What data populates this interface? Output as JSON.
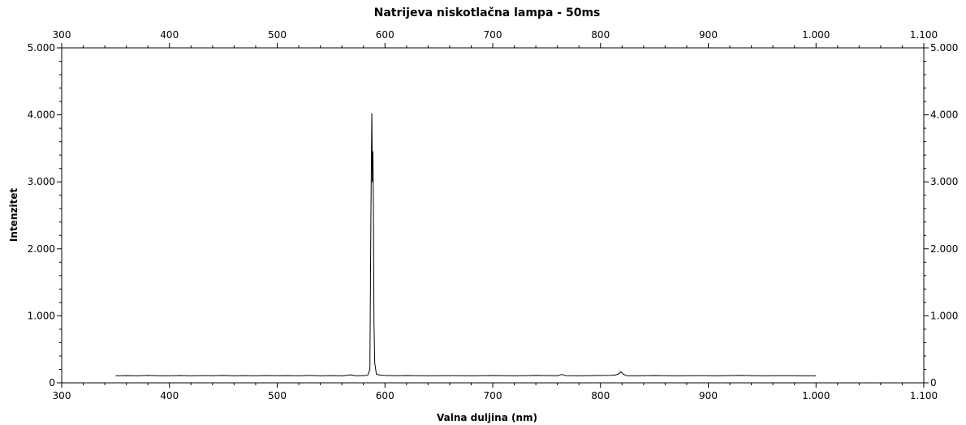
{
  "chart_data": {
    "type": "line",
    "title": "Natrijeva niskotlačna lampa - 50ms",
    "xlabel": "Valna duljina (nm)",
    "ylabel": "Intenzitet",
    "xlim": [
      300,
      1100
    ],
    "ylim": [
      0,
      5000
    ],
    "x_ticks": [
      300,
      400,
      500,
      600,
      700,
      800,
      900,
      1000,
      1100
    ],
    "x_tick_labels": [
      "300",
      "400",
      "500",
      "600",
      "700",
      "800",
      "900",
      "1.000",
      "1.100"
    ],
    "y_ticks": [
      0,
      1000,
      2000,
      3000,
      4000,
      5000
    ],
    "y_tick_labels": [
      "0",
      "1.000",
      "2.000",
      "3.000",
      "4.000",
      "5.000"
    ],
    "axes": "box with ticks on all four sides, labels on all four sides",
    "grid": false,
    "legend": "none",
    "line_color": "#000000",
    "series": [
      {
        "x": [
          350,
          360,
          370,
          380,
          390,
          400,
          410,
          420,
          430,
          440,
          450,
          460,
          470,
          480,
          490,
          500,
          510,
          520,
          530,
          540,
          550,
          560,
          565,
          568,
          572,
          575,
          580,
          584,
          586,
          587,
          587.8,
          588.3,
          588.8,
          589.3,
          589.8,
          590.5,
          592,
          595,
          600,
          610,
          620,
          640,
          660,
          680,
          700,
          720,
          740,
          760,
          764,
          768,
          780,
          800,
          810,
          814,
          817,
          819,
          821,
          824,
          830,
          850,
          870,
          890,
          910,
          930,
          950,
          970,
          990,
          1000
        ],
        "y": [
          105,
          108,
          104,
          110,
          106,
          105,
          109,
          104,
          108,
          106,
          110,
          105,
          107,
          104,
          109,
          106,
          108,
          105,
          110,
          104,
          108,
          105,
          112,
          120,
          108,
          105,
          109,
          112,
          200,
          2600,
          4020,
          3000,
          3450,
          2500,
          900,
          300,
          130,
          115,
          110,
          106,
          109,
          104,
          108,
          105,
          109,
          104,
          110,
          106,
          125,
          108,
          105,
          110,
          112,
          118,
          135,
          165,
          130,
          108,
          105,
          109,
          104,
          108,
          105,
          110,
          104,
          107,
          104,
          105
        ]
      }
    ]
  }
}
